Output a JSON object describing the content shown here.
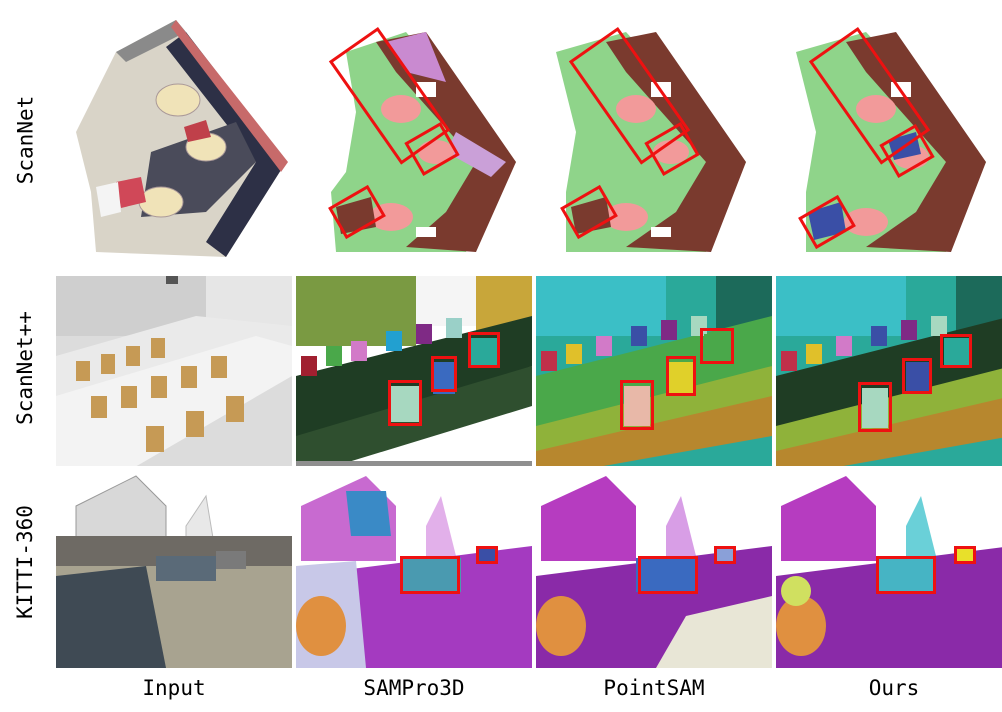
{
  "rows": [
    {
      "label": "ScanNet"
    },
    {
      "label": "ScanNet++"
    },
    {
      "label": "KITTI-360"
    }
  ],
  "columns": [
    {
      "label": "Input"
    },
    {
      "label": "SAMPro3D"
    },
    {
      "label": "PointSAM"
    },
    {
      "label": "Ours"
    }
  ],
  "colors": {
    "highlight_box": "#ee1111",
    "floor_green": "#8fd48a",
    "wall_brown": "#7a3a2e",
    "table_pink": "#f29a9a",
    "seg_purple": "#b63cc0",
    "seg_blue": "#3a4fa6",
    "seg_teal": "#2aa99a"
  }
}
